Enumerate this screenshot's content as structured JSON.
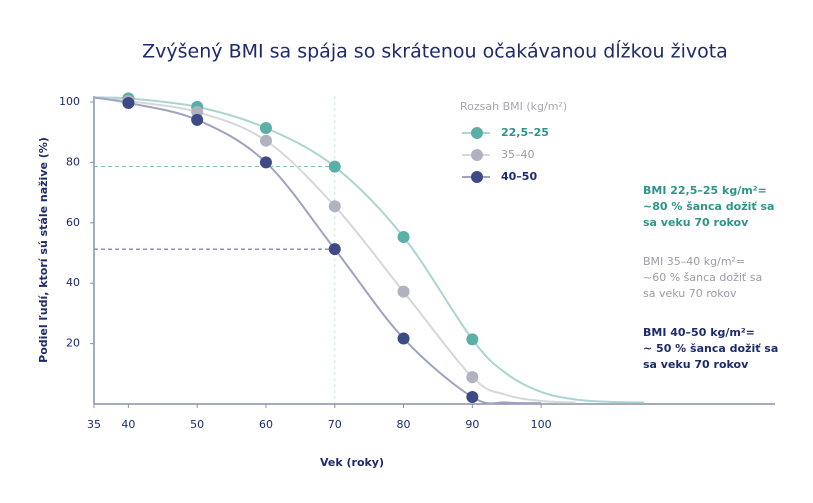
{
  "chart_data": {
    "type": "line",
    "title": "Zvýšený BMI sa spája so skrátenou očakávanou dĺžkou života",
    "x_label": "Vek (roky)",
    "y_label": "Podiel ľudí, ktorí sú stále nažive (%)",
    "x": [
      40,
      50,
      60,
      70,
      80,
      90
    ],
    "xlim": [
      35,
      134
    ],
    "xticks": [
      35,
      40,
      50,
      60,
      70,
      80,
      90,
      100
    ],
    "ylim": [
      0,
      102
    ],
    "yticks": [
      20,
      40,
      60,
      80,
      100
    ],
    "legend_title": "Rozsah BMI (kg/m²)",
    "series": [
      {
        "name": "22,5–25",
        "color": "#5aafa6",
        "line_color": "#a9d6d1",
        "text_color": "#2f9488",
        "values": [
          101.2,
          98.4,
          91.4,
          78.6,
          55.3,
          21.4
        ],
        "line_x": [
          35,
          40,
          50,
          60,
          70,
          80,
          90,
          95,
          100,
          105,
          110,
          115
        ],
        "line_values": [
          101.5,
          101.2,
          98.4,
          91.4,
          78.6,
          55.3,
          21.4,
          10,
          4,
          1.5,
          0.7,
          0.5
        ]
      },
      {
        "name": "35–40",
        "color": "#b0b3bf",
        "line_color": "#d6d7db",
        "text_color": "#9a9ca8",
        "values": [
          100.3,
          96.7,
          87.2,
          65.5,
          37.2,
          8.9
        ],
        "line_x": [
          35,
          40,
          50,
          60,
          70,
          80,
          90,
          95,
          100,
          105
        ],
        "line_values": [
          101.5,
          100.3,
          96.7,
          87.2,
          65.5,
          37.2,
          8.9,
          3,
          1,
          0.5
        ]
      },
      {
        "name": "40–50",
        "color": "#3d4a85",
        "line_color": "#9ea3c2",
        "text_color": "#1d2a6b",
        "values": [
          99.7,
          94.1,
          80,
          51.3,
          21.7,
          2.3
        ],
        "line_x": [
          35,
          40,
          50,
          60,
          70,
          80,
          90,
          95,
          100
        ],
        "line_values": [
          101.5,
          99.7,
          94.1,
          80,
          51.3,
          21.7,
          2.3,
          0.5,
          0.3
        ]
      }
    ],
    "annotations": [
      [
        "BMI 22,5–25 kg/m²=",
        "~80 % šanca dožiť sa",
        "sa veku 70 rokov"
      ],
      [
        "BMI 35–40 kg/m²=",
        "~60 % šanca dožiť sa",
        "sa veku 70 rokov"
      ],
      [
        "BMI 40–50 kg/m²=",
        "~ 50 % šanca dožiť sa",
        "sa veku 70 rokov"
      ]
    ]
  }
}
